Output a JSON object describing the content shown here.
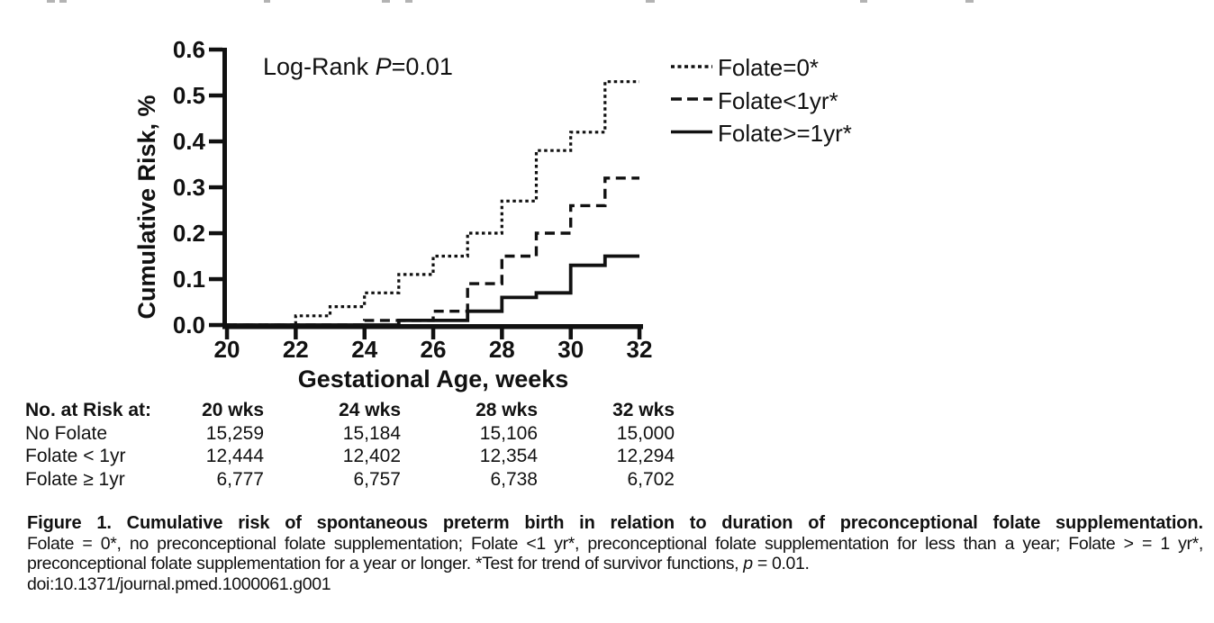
{
  "page": {
    "background": "#ffffff",
    "ink": "#111111"
  },
  "chart_data": {
    "type": "line",
    "subtype": "step-cumulative-risk",
    "title": "",
    "annotation": {
      "prefix": "Log-Rank ",
      "italic": "P",
      "suffix": "=0.01"
    },
    "xlabel": "Gestational Age, weeks",
    "ylabel": "Cumulative Risk, %",
    "xlim": [
      20,
      32
    ],
    "ylim": [
      0,
      0.6
    ],
    "x_ticks": [
      "20",
      "22",
      "24",
      "26",
      "28",
      "30",
      "32"
    ],
    "y_ticks": [
      "0.0",
      "0.1",
      "0.2",
      "0.3",
      "0.4",
      "0.5",
      "0.6"
    ],
    "grid": false,
    "legend_position": "upper right",
    "line_color": "#111111",
    "series": [
      {
        "name": "Folate=0*",
        "style": "dotted",
        "steps": [
          [
            20,
            0
          ],
          [
            22,
            0.02
          ],
          [
            23,
            0.04
          ],
          [
            24,
            0.07
          ],
          [
            25,
            0.11
          ],
          [
            26,
            0.15
          ],
          [
            27,
            0.2
          ],
          [
            28,
            0.27
          ],
          [
            29,
            0.38
          ],
          [
            30,
            0.42
          ],
          [
            31,
            0.53
          ],
          [
            32,
            0.53
          ]
        ]
      },
      {
        "name": "Folate<1yr*",
        "style": "dashed",
        "steps": [
          [
            20,
            0
          ],
          [
            24,
            0.01
          ],
          [
            26,
            0.03
          ],
          [
            27,
            0.09
          ],
          [
            28,
            0.15
          ],
          [
            29,
            0.2
          ],
          [
            30,
            0.26
          ],
          [
            31,
            0.32
          ],
          [
            32,
            0.32
          ]
        ]
      },
      {
        "name": "Folate>=1yr*",
        "style": "solid",
        "steps": [
          [
            20,
            0
          ],
          [
            25,
            0.01
          ],
          [
            27,
            0.03
          ],
          [
            28,
            0.06
          ],
          [
            29,
            0.07
          ],
          [
            30,
            0.13
          ],
          [
            31,
            0.15
          ],
          [
            32,
            0.15
          ]
        ]
      }
    ]
  },
  "risk_table": {
    "title": "No. at Risk at:",
    "col_headers": [
      "20 wks",
      "24 wks",
      "28 wks",
      "32 wks"
    ],
    "rows": [
      {
        "label": "No Folate",
        "values": [
          "15,259",
          "15,184",
          "15,106",
          "15,000"
        ]
      },
      {
        "label": "Folate < 1yr",
        "values": [
          "12,444",
          "12,402",
          "12,354",
          "12,294"
        ]
      },
      {
        "label": "Folate ≥ 1yr",
        "values": [
          "6,777",
          "6,757",
          "6,738",
          "6,702"
        ]
      }
    ]
  },
  "caption": {
    "title": "Figure 1. Cumulative risk of spontaneous preterm birth in relation to duration of preconceptional folate supplementation.",
    "line2": "Folate = 0*, no preconceptional folate supplementation; Folate <1 yr*, preconceptional folate supplementation for less than a year; Folate > = 1 yr*,",
    "line3_prefix": "preconceptional folate supplementation for a year or longer. *Test for trend of survivor functions, ",
    "line3_italic": "p",
    "line3_suffix": " = 0.01.",
    "doi": "doi:10.1371/journal.pmed.1000061.g001"
  }
}
